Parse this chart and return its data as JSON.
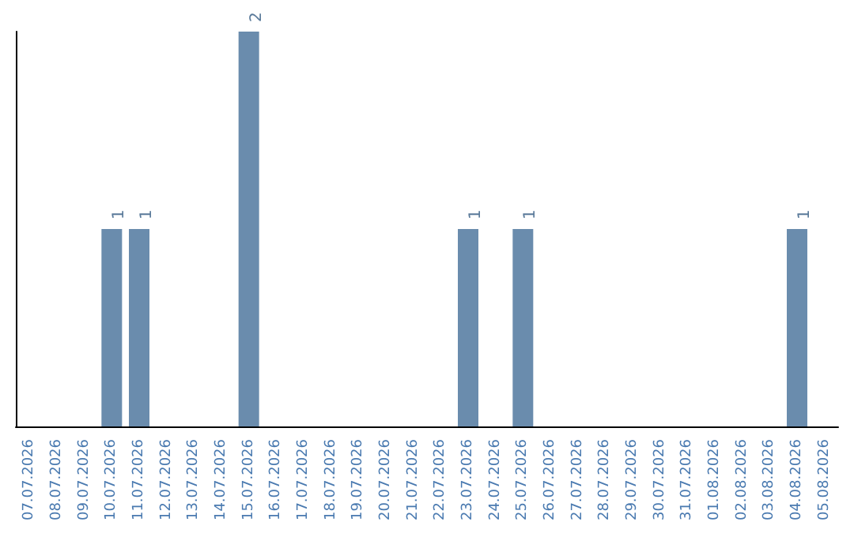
{
  "chart_data": {
    "type": "bar",
    "categories": [
      "07.07.2026",
      "08.07.2026",
      "09.07.2026",
      "10.07.2026",
      "11.07.2026",
      "12.07.2026",
      "13.07.2026",
      "14.07.2026",
      "15.07.2026",
      "16.07.2026",
      "17.07.2026",
      "18.07.2026",
      "19.07.2026",
      "20.07.2026",
      "21.07.2026",
      "22.07.2026",
      "23.07.2026",
      "24.07.2026",
      "25.07.2026",
      "26.07.2026",
      "27.07.2026",
      "28.07.2026",
      "29.07.2026",
      "30.07.2026",
      "31.07.2026",
      "01.08.2026",
      "02.08.2026",
      "03.08.2026",
      "04.08.2026",
      "05.08.2026"
    ],
    "values": [
      0,
      0,
      0,
      1,
      1,
      0,
      0,
      0,
      2,
      0,
      0,
      0,
      0,
      0,
      0,
      0,
      1,
      0,
      1,
      0,
      0,
      0,
      0,
      0,
      0,
      0,
      0,
      0,
      1,
      0
    ],
    "value_labels": [
      null,
      null,
      null,
      "1",
      "1",
      null,
      null,
      null,
      "2",
      null,
      null,
      null,
      null,
      null,
      null,
      null,
      "1",
      null,
      "1",
      null,
      null,
      null,
      null,
      null,
      null,
      null,
      null,
      null,
      "1",
      null
    ],
    "color": "#6a8cad",
    "ylim": [
      0,
      2
    ],
    "tick_labels": "x",
    "grid": false
  }
}
